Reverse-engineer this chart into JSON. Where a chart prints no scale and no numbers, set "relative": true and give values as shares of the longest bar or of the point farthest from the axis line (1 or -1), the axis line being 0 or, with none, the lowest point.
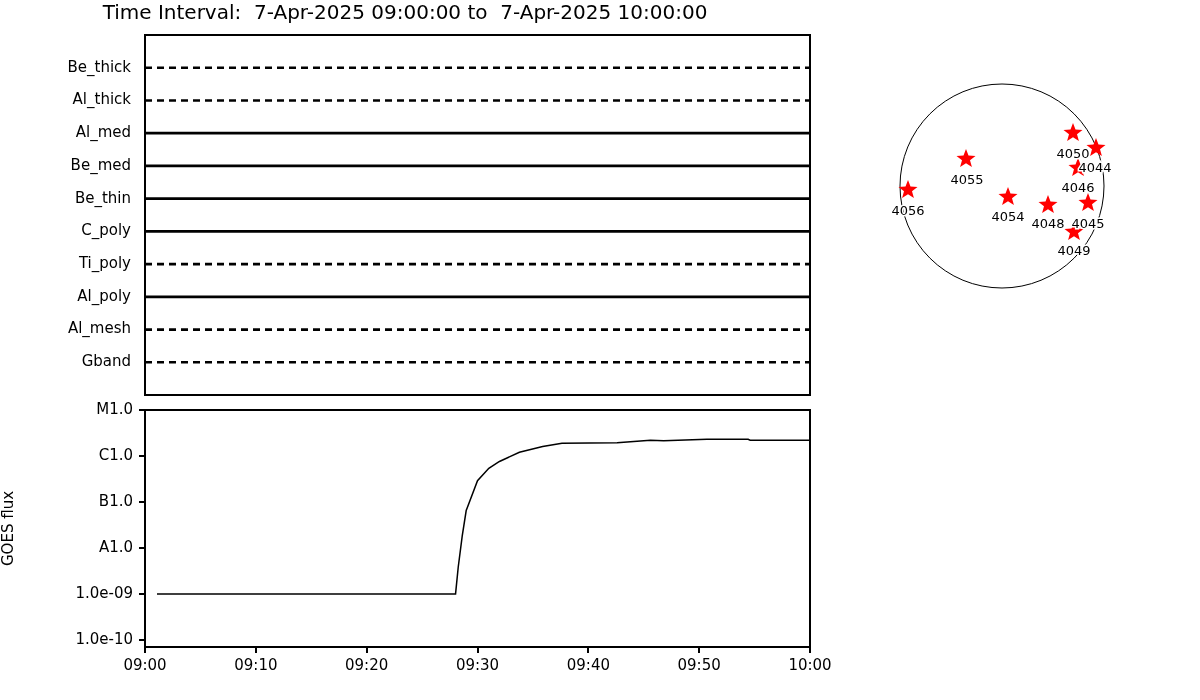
{
  "chart_data": [
    {
      "type": "bar",
      "orientation": "horizontal",
      "title": "Time Interval:  7-Apr-2025 09:00:00 to  7-Apr-2025 10:00:00",
      "categories": [
        "Be_thick",
        "Al_thick",
        "Al_med",
        "Be_med",
        "Be_thin",
        "C_poly",
        "Ti_poly",
        "Al_poly",
        "Al_mesh",
        "Gband"
      ],
      "series": [
        {
          "color": "#000000",
          "line_style": "dashed",
          "values": [
            1,
            1,
            null,
            null,
            null,
            null,
            1,
            null,
            1,
            1
          ]
        },
        {
          "color": "#000000",
          "line_style": "solid",
          "values": [
            null,
            null,
            1,
            1,
            1,
            1,
            null,
            1,
            null,
            null
          ]
        }
      ],
      "relative": true,
      "tick_labels": "y",
      "grid": false
    },
    {
      "type": "line",
      "ylabel": "GOES flux",
      "x": [
        9.018,
        9.467,
        9.471,
        9.477,
        9.483,
        9.5,
        9.517,
        9.533,
        9.563,
        9.598,
        9.627,
        9.71,
        9.76,
        9.78,
        9.845,
        9.907,
        9.91,
        10
      ],
      "values": [
        1e-09,
        1e-09,
        3.8e-09,
        1.8e-08,
        6.5e-08,
        2.9e-07,
        5.4e-07,
        7.6e-07,
        1.2e-06,
        1.6e-06,
        1.9e-06,
        1.95e-06,
        2.2e-06,
        2.15e-06,
        2.3e-06,
        2.3e-06,
        2.2e-06,
        2.2e-06
      ],
      "color": "#000000",
      "marker": "none",
      "log": "y",
      "ylim": [
        7e-11,
        1e-05
      ],
      "yticks": [
        {
          "value": 1e-10,
          "label": "1.0e-10"
        },
        {
          "value": 1e-09,
          "label": "1.0e-09"
        },
        {
          "value": 1e-08,
          "label": "A1.0"
        },
        {
          "value": 1e-07,
          "label": "B1.0"
        },
        {
          "value": 1e-06,
          "label": "C1.0"
        },
        {
          "value": 1e-05,
          "label": "M1.0"
        }
      ],
      "xlim": [
        9,
        10
      ],
      "xticks": [
        {
          "value": 9,
          "label": "09:00"
        },
        {
          "value": 9.1667,
          "label": "09:10"
        },
        {
          "value": 9.3333,
          "label": "09:20"
        },
        {
          "value": 9.5,
          "label": "09:30"
        },
        {
          "value": 9.6667,
          "label": "09:40"
        },
        {
          "value": 9.8333,
          "label": "09:50"
        },
        {
          "value": 10,
          "label": "10:00"
        }
      ],
      "grid": false
    },
    {
      "type": "other",
      "annotations": [
        "4050",
        "4044",
        "4046",
        "4055",
        "4056",
        "4054",
        "4048",
        "4045",
        "4049"
      ]
    }
  ]
}
